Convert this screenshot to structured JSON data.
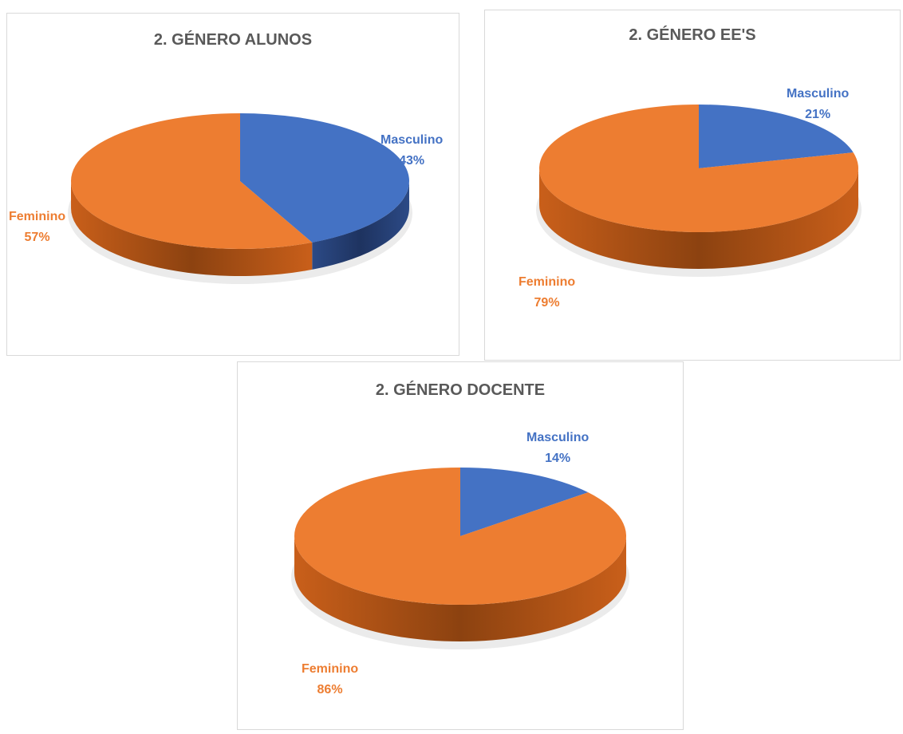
{
  "colors": {
    "orange": "#ED7D31",
    "blue": "#4472C4",
    "title": "#595959"
  },
  "chart_data": [
    {
      "type": "pie",
      "title": "2. GÉNERO ALUNOS",
      "categories": [
        "Masculino",
        "Feminino"
      ],
      "values": [
        43,
        57
      ],
      "value_labels": [
        "43%",
        "57%"
      ]
    },
    {
      "type": "pie",
      "title": "2. GÉNERO EE'S",
      "categories": [
        "Masculino",
        "Feminino"
      ],
      "values": [
        21,
        79
      ],
      "value_labels": [
        "21%",
        "79%"
      ]
    },
    {
      "type": "pie",
      "title": "2. GÉNERO DOCENTE",
      "categories": [
        "Masculino",
        "Feminino"
      ],
      "values": [
        14,
        86
      ],
      "value_labels": [
        "14%",
        "86%"
      ]
    }
  ]
}
